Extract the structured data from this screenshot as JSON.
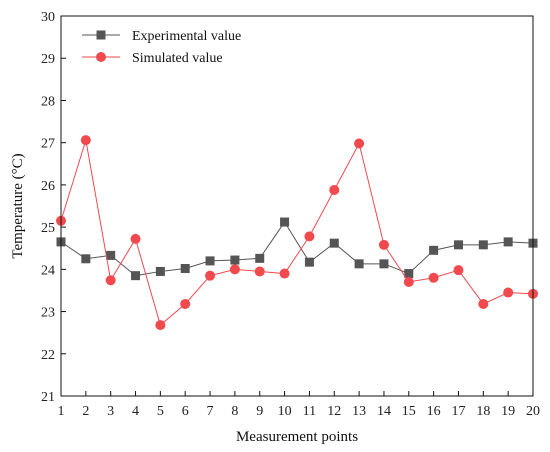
{
  "chart_data": {
    "type": "line",
    "title": "",
    "xlabel": "Measurement points",
    "ylabel": "Temperature (°C)",
    "x": [
      1,
      2,
      3,
      4,
      5,
      6,
      7,
      8,
      9,
      10,
      11,
      12,
      13,
      14,
      15,
      16,
      17,
      18,
      19,
      20
    ],
    "xlim": [
      1,
      20
    ],
    "ylim": [
      21,
      30
    ],
    "yticks": [
      21,
      22,
      23,
      24,
      25,
      26,
      27,
      28,
      29,
      30
    ],
    "grid": false,
    "legend_position": "top-left",
    "series": [
      {
        "name": "Experimental value",
        "color": "#555555",
        "marker": "square",
        "values": [
          24.65,
          24.25,
          24.33,
          23.85,
          23.95,
          24.02,
          24.2,
          24.22,
          24.26,
          25.12,
          24.17,
          24.62,
          24.13,
          24.13,
          23.9,
          24.45,
          24.58,
          24.58,
          24.65,
          24.62
        ]
      },
      {
        "name": "Simulated value",
        "color": "#f04a4f",
        "marker": "circle",
        "values": [
          25.15,
          27.06,
          23.74,
          24.72,
          22.68,
          23.18,
          23.85,
          24.0,
          23.95,
          23.9,
          24.78,
          25.88,
          26.98,
          24.58,
          23.7,
          23.8,
          23.98,
          23.18,
          23.45,
          23.42
        ]
      }
    ]
  }
}
